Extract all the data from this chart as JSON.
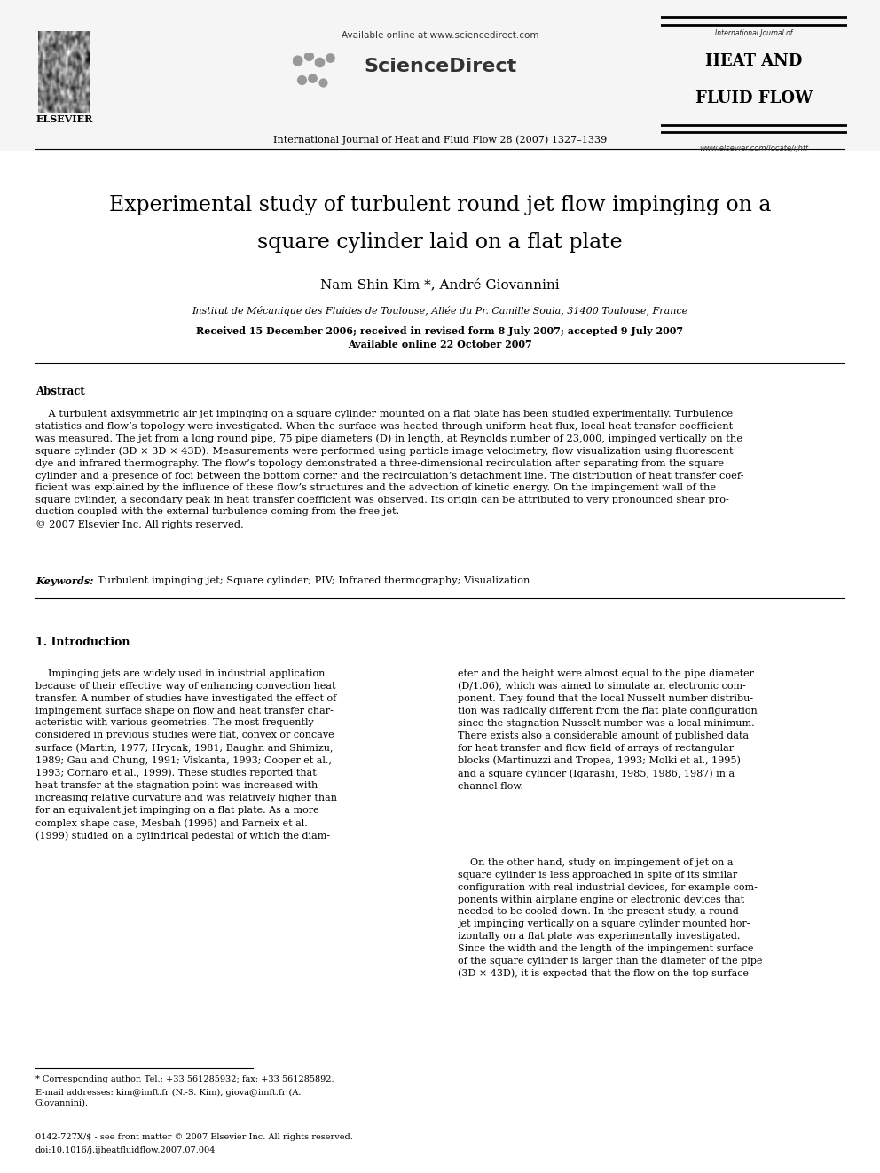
{
  "bg_color": "#ffffff",
  "available_online_text": "Available online at www.sciencedirect.com",
  "sciencedirect_text": "ScienceDirect",
  "journal_header_text": "International Journal of Heat and Fluid Flow 28 (2007) 1327–1339",
  "heat_fluid_flow_line1": "HEAT AND",
  "heat_fluid_flow_line2": "FLUID FLOW",
  "intl_journal_of": "International Journal of",
  "www_text": "www.elsevier.com/locate/ijhff",
  "title_line1": "Experimental study of turbulent round jet flow impinging on a",
  "title_line2": "square cylinder laid on a flat plate",
  "authors": "Nam-Shin Kim *, André Giovannini",
  "affiliation": "Institut de Mécanique des Fluides de Toulouse, Allée du Pr. Camille Soula, 31400 Toulouse, France",
  "dates_line1": "Received 15 December 2006; received in revised form 8 July 2007; accepted 9 July 2007",
  "dates_line2": "Available online 22 October 2007",
  "abstract_heading": "Abstract",
  "abstract_indent": "    A turbulent axisymmetric air jet impinging on a square cylinder mounted on a flat plate has been studied experimentally. Turbulence",
  "abstract_text": "statistics and flow’s topology were investigated. When the surface was heated through uniform heat flux, local heat transfer coefficient\nwas measured. The jet from a long round pipe, 75 pipe diameters (D) in length, at Reynolds number of 23,000, impinged vertically on the\nsquare cylinder (3D × 3D × 43D). Measurements were performed using particle image velocimetry, flow visualization using fluorescent\ndye and infrared thermography. The flow’s topology demonstrated a three-dimensional recirculation after separating from the square\ncylinder and a presence of foci between the bottom corner and the recirculation’s detachment line. The distribution of heat transfer coef-\nficient was explained by the influence of these flow’s structures and the advection of kinetic energy. On the impingement wall of the\nsquare cylinder, a secondary peak in heat transfer coefficient was observed. Its origin can be attributed to very pronounced shear pro-\nduction coupled with the external turbulence coming from the free jet.\n© 2007 Elsevier Inc. All rights reserved.",
  "keywords_label": "Keywords:",
  "keywords_text": "Turbulent impinging jet; Square cylinder; PIV; Infrared thermography; Visualization",
  "section1_heading": "1. Introduction",
  "section1_col1": "    Impinging jets are widely used in industrial application\nbecause of their effective way of enhancing convection heat\ntransfer. A number of studies have investigated the effect of\nimpingement surface shape on flow and heat transfer char-\nacteristic with various geometries. The most frequently\nconsidered in previous studies were flat, convex or concave\nsurface (Martin, 1977; Hrycak, 1981; Baughn and Shimizu,\n1989; Gau and Chung, 1991; Viskanta, 1993; Cooper et al.,\n1993; Cornaro et al., 1999). These studies reported that\nheat transfer at the stagnation point was increased with\nincreasing relative curvature and was relatively higher than\nfor an equivalent jet impinging on a flat plate. As a more\ncomplex shape case, Mesbah (1996) and Parneix et al.\n(1999) studied on a cylindrical pedestal of which the diam-",
  "section1_col2a": "eter and the height were almost equal to the pipe diameter\n(D/1.06), which was aimed to simulate an electronic com-\nponent. They found that the local Nusselt number distribu-\ntion was radically different from the flat plate configuration\nsince the stagnation Nusselt number was a local minimum.\nThere exists also a considerable amount of published data\nfor heat transfer and flow field of arrays of rectangular\nblocks (Martinuzzi and Tropea, 1993; Molki et al., 1995)\nand a square cylinder (Igarashi, 1985, 1986, 1987) in a\nchannel flow.",
  "section1_col2b": "    On the other hand, study on impingement of jet on a\nsquare cylinder is less approached in spite of its similar\nconfiguration with real industrial devices, for example com-\nponents within airplane engine or electronic devices that\nneeded to be cooled down. In the present study, a round\njet impinging vertically on a square cylinder mounted hor-\nizontally on a flat plate was experimentally investigated.\nSince the width and the length of the impingement surface\nof the square cylinder is larger than the diameter of the pipe\n(3D × 43D), it is expected that the flow on the top surface",
  "footnote_sep": "___",
  "footnote_star": "* Corresponding author. Tel.: +33 561285932; fax: +33 561285892.",
  "footnote_email": "E-mail addresses: kim@imft.fr (N.-S. Kim), giova@imft.fr (A.\nGiovannini).",
  "footer_issn": "0142-727X/$ - see front matter © 2007 Elsevier Inc. All rights reserved.",
  "footer_doi": "doi:10.1016/j.ijheatfluidflow.2007.07.004"
}
